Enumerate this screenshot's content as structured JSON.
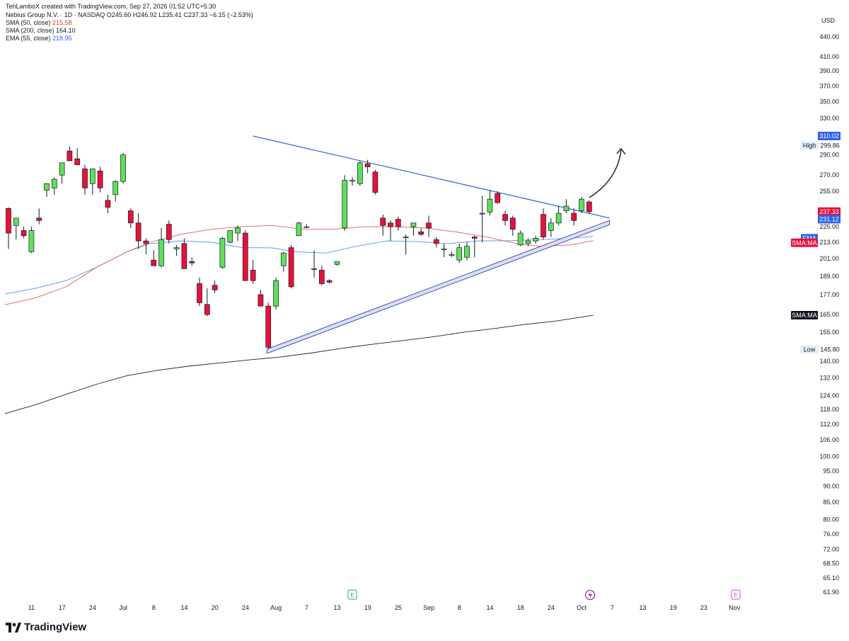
{
  "header": {
    "credit": "TehLamboX created with TradingView.com, Sep 27, 2026 01:52 UTC+5:30",
    "symbol_line": "Nebius Group N.V. · 1D · NASDAQ",
    "ohlc": "O245.60  H246.92  L235.41  C237.33  −6.15 (−2.53%)",
    "sma50_label": "SMA (50, close)",
    "sma50_value": "215.58",
    "sma200_label": "SMA (200, close)",
    "sma200_value": "164.10",
    "ema_label": "EMA (55, close)",
    "ema_value": "218.95"
  },
  "currency": "USD",
  "brand": "TradingView",
  "colors": {
    "up": "#5fe05a",
    "down": "#e8113a",
    "trendline": "#3b6fd8",
    "channel_fill": "#d9defa",
    "ema": "#5b8ff0",
    "sma50": "#e35b5b",
    "sma200": "#222222"
  },
  "chart_data": {
    "type": "candlestick",
    "scale": "log",
    "ylim": [
      61.9,
      440.0
    ],
    "y_ticks": [
      "440.00",
      "410.00",
      "390.00",
      "370.00",
      "350.00",
      "330.00",
      "290.00",
      "270.00",
      "255.00",
      "225.00",
      "213.00",
      "201.00",
      "189.00",
      "177.00",
      "165.00",
      "155.00",
      "140.00",
      "132.00",
      "124.00",
      "118.00",
      "112.00",
      "106.00",
      "100.00",
      "95.00",
      "90.00",
      "85.00",
      "80.00",
      "76.00",
      "72.00",
      "68.50",
      "65.10",
      "61.90"
    ],
    "x_ticks": [
      "11",
      "17",
      "24",
      "Jul",
      "8",
      "14",
      "20",
      "24",
      "Aug",
      "7",
      "13",
      "19",
      "25",
      "Sep",
      "8",
      "14",
      "18",
      "24",
      "Oct",
      "7",
      "13",
      "19",
      "23",
      "Nov"
    ],
    "price_labels": [
      {
        "text": "310.02",
        "value": 310.02,
        "kind": "blue"
      },
      {
        "text": "High",
        "value": 299.86,
        "kind": "tag"
      },
      {
        "text": "299.86",
        "value": 299.86,
        "kind": "plain"
      },
      {
        "text": "237.33",
        "value": 237.33,
        "kind": "red"
      },
      {
        "text": "231.12",
        "value": 231.12,
        "kind": "blue"
      },
      {
        "text": "EMA",
        "value": 216.0,
        "kind": "ema-tag"
      },
      {
        "text": "SMA:MA",
        "value": 212.6,
        "kind": "sma-tag"
      },
      {
        "text": "SMA:MA",
        "value": 164.6,
        "kind": "black-tag"
      },
      {
        "text": "Low",
        "value": 145.8,
        "kind": "tag"
      },
      {
        "text": "145.80",
        "value": 145.8,
        "kind": "plain"
      }
    ],
    "event_markers": [
      "E",
      "E"
    ],
    "candles": [
      {
        "o": 240,
        "h": 241,
        "l": 208,
        "c": 220
      },
      {
        "o": 226,
        "h": 232,
        "l": 215,
        "c": 232
      },
      {
        "o": 222,
        "h": 225,
        "l": 216,
        "c": 218
      },
      {
        "o": 206,
        "h": 225,
        "l": 205,
        "c": 222
      },
      {
        "o": 232,
        "h": 240,
        "l": 227,
        "c": 230
      },
      {
        "o": 256,
        "h": 262,
        "l": 250,
        "c": 262
      },
      {
        "o": 258,
        "h": 268,
        "l": 252,
        "c": 266
      },
      {
        "o": 270,
        "h": 282,
        "l": 262,
        "c": 282
      },
      {
        "o": 294,
        "h": 299,
        "l": 284,
        "c": 284
      },
      {
        "o": 286,
        "h": 297,
        "l": 280,
        "c": 280
      },
      {
        "o": 276,
        "h": 280,
        "l": 252,
        "c": 258
      },
      {
        "o": 262,
        "h": 276,
        "l": 252,
        "c": 276
      },
      {
        "o": 274,
        "h": 278,
        "l": 254,
        "c": 258
      },
      {
        "o": 247,
        "h": 252,
        "l": 236,
        "c": 241
      },
      {
        "o": 252,
        "h": 265,
        "l": 246,
        "c": 264
      },
      {
        "o": 264,
        "h": 292,
        "l": 262,
        "c": 290
      },
      {
        "o": 238,
        "h": 240,
        "l": 224,
        "c": 228
      },
      {
        "o": 228,
        "h": 236,
        "l": 208,
        "c": 214
      },
      {
        "o": 214,
        "h": 216,
        "l": 204,
        "c": 212
      },
      {
        "o": 200,
        "h": 207,
        "l": 196,
        "c": 196
      },
      {
        "o": 196,
        "h": 224,
        "l": 195,
        "c": 215
      },
      {
        "o": 227,
        "h": 230,
        "l": 212,
        "c": 215
      },
      {
        "o": 208,
        "h": 211,
        "l": 203,
        "c": 209
      },
      {
        "o": 212,
        "h": 216,
        "l": 194,
        "c": 194
      },
      {
        "o": 199,
        "h": 202,
        "l": 196,
        "c": 198
      },
      {
        "o": 184,
        "h": 188,
        "l": 170,
        "c": 172
      },
      {
        "o": 171,
        "h": 181,
        "l": 164,
        "c": 165
      },
      {
        "o": 183,
        "h": 186,
        "l": 178,
        "c": 180
      },
      {
        "o": 195,
        "h": 217,
        "l": 194,
        "c": 216
      },
      {
        "o": 213,
        "h": 222,
        "l": 212,
        "c": 222
      },
      {
        "o": 220,
        "h": 226,
        "l": 214,
        "c": 224
      },
      {
        "o": 220,
        "h": 222,
        "l": 186,
        "c": 186
      },
      {
        "o": 193,
        "h": 200,
        "l": 184,
        "c": 186
      },
      {
        "o": 177,
        "h": 180,
        "l": 170,
        "c": 170
      },
      {
        "o": 170,
        "h": 172,
        "l": 146,
        "c": 147
      },
      {
        "o": 170,
        "h": 188,
        "l": 168,
        "c": 186
      },
      {
        "o": 196,
        "h": 206,
        "l": 192,
        "c": 205
      },
      {
        "o": 209,
        "h": 211,
        "l": 181,
        "c": 182
      },
      {
        "o": 218,
        "h": 229,
        "l": 218,
        "c": 228
      },
      {
        "o": 225,
        "h": 227,
        "l": 224,
        "c": 225
      },
      {
        "o": 194,
        "h": 207,
        "l": 188,
        "c": 194
      },
      {
        "o": 193,
        "h": 196,
        "l": 183,
        "c": 184
      },
      {
        "o": 186,
        "h": 187,
        "l": 184,
        "c": 185
      },
      {
        "o": 197,
        "h": 199,
        "l": 196,
        "c": 199
      },
      {
        "o": 224,
        "h": 270,
        "l": 222,
        "c": 265
      },
      {
        "o": 265,
        "h": 268,
        "l": 260,
        "c": 265
      },
      {
        "o": 262,
        "h": 284,
        "l": 260,
        "c": 282
      },
      {
        "o": 281,
        "h": 285,
        "l": 272,
        "c": 278
      },
      {
        "o": 273,
        "h": 275,
        "l": 252,
        "c": 254
      },
      {
        "o": 232,
        "h": 235,
        "l": 218,
        "c": 226
      },
      {
        "o": 228,
        "h": 230,
        "l": 214,
        "c": 225
      },
      {
        "o": 231,
        "h": 233,
        "l": 222,
        "c": 225
      },
      {
        "o": 217,
        "h": 219,
        "l": 204,
        "c": 217
      },
      {
        "o": 225,
        "h": 228,
        "l": 218,
        "c": 228
      },
      {
        "o": 221,
        "h": 224,
        "l": 218,
        "c": 219
      },
      {
        "o": 228,
        "h": 234,
        "l": 217,
        "c": 224
      },
      {
        "o": 215,
        "h": 217,
        "l": 209,
        "c": 212
      },
      {
        "o": 208,
        "h": 212,
        "l": 202,
        "c": 208
      },
      {
        "o": 204,
        "h": 206,
        "l": 202,
        "c": 204
      },
      {
        "o": 200,
        "h": 212,
        "l": 198,
        "c": 209
      },
      {
        "o": 202,
        "h": 213,
        "l": 200,
        "c": 210
      },
      {
        "o": 217,
        "h": 218,
        "l": 202,
        "c": 216
      },
      {
        "o": 236,
        "h": 251,
        "l": 213,
        "c": 236
      },
      {
        "o": 237,
        "h": 256,
        "l": 234,
        "c": 248
      },
      {
        "o": 253,
        "h": 255,
        "l": 244,
        "c": 245
      },
      {
        "o": 235,
        "h": 238,
        "l": 226,
        "c": 230
      },
      {
        "o": 232,
        "h": 234,
        "l": 218,
        "c": 223
      },
      {
        "o": 211,
        "h": 222,
        "l": 210,
        "c": 220
      },
      {
        "o": 212,
        "h": 216,
        "l": 210,
        "c": 214
      },
      {
        "o": 214,
        "h": 218,
        "l": 212,
        "c": 216
      },
      {
        "o": 235,
        "h": 240,
        "l": 215,
        "c": 217
      },
      {
        "o": 222,
        "h": 232,
        "l": 217,
        "c": 228
      },
      {
        "o": 228,
        "h": 242,
        "l": 226,
        "c": 236
      },
      {
        "o": 238,
        "h": 248,
        "l": 236,
        "c": 242
      },
      {
        "o": 236,
        "h": 240,
        "l": 226,
        "c": 230
      },
      {
        "o": 238,
        "h": 250,
        "l": 236,
        "c": 248
      },
      {
        "o": 245.6,
        "h": 246.9,
        "l": 235.4,
        "c": 237.3
      }
    ],
    "series": [
      {
        "name": "EMA (55, close)",
        "values": [
          {
            "i": 0,
            "v": 177.5
          },
          {
            "i": 4,
            "v": 181
          },
          {
            "i": 8,
            "v": 186
          },
          {
            "i": 12,
            "v": 195
          },
          {
            "i": 16,
            "v": 206
          },
          {
            "i": 19,
            "v": 212
          },
          {
            "i": 23,
            "v": 214
          },
          {
            "i": 27,
            "v": 213
          },
          {
            "i": 31,
            "v": 209
          },
          {
            "i": 35,
            "v": 208.8
          },
          {
            "i": 38,
            "v": 206
          },
          {
            "i": 42,
            "v": 205
          },
          {
            "i": 46,
            "v": 210
          },
          {
            "i": 50,
            "v": 214
          },
          {
            "i": 54,
            "v": 213.5
          },
          {
            "i": 58,
            "v": 212
          },
          {
            "i": 62,
            "v": 214
          },
          {
            "i": 66,
            "v": 214.2
          },
          {
            "i": 70,
            "v": 215
          },
          {
            "i": 74,
            "v": 216
          },
          {
            "i": 77,
            "v": 217.5
          }
        ]
      },
      {
        "name": "SMA (50, close)",
        "values": [
          {
            "i": 0,
            "v": 170.8
          },
          {
            "i": 4,
            "v": 175
          },
          {
            "i": 8,
            "v": 182
          },
          {
            "i": 12,
            "v": 195
          },
          {
            "i": 16,
            "v": 206
          },
          {
            "i": 19,
            "v": 213
          },
          {
            "i": 23,
            "v": 219
          },
          {
            "i": 27,
            "v": 223
          },
          {
            "i": 31,
            "v": 225
          },
          {
            "i": 35,
            "v": 226
          },
          {
            "i": 39,
            "v": 223
          },
          {
            "i": 43,
            "v": 223
          },
          {
            "i": 47,
            "v": 225
          },
          {
            "i": 51,
            "v": 225
          },
          {
            "i": 55,
            "v": 224
          },
          {
            "i": 59,
            "v": 221
          },
          {
            "i": 63,
            "v": 217
          },
          {
            "i": 67,
            "v": 212
          },
          {
            "i": 70,
            "v": 210
          },
          {
            "i": 74,
            "v": 211
          },
          {
            "i": 77,
            "v": 214.2
          }
        ]
      },
      {
        "name": "SMA (200, close)",
        "values": [
          {
            "i": 0,
            "v": 116.3
          },
          {
            "i": 4,
            "v": 120
          },
          {
            "i": 8,
            "v": 124.5
          },
          {
            "i": 12,
            "v": 129
          },
          {
            "i": 16,
            "v": 133
          },
          {
            "i": 20,
            "v": 135.5
          },
          {
            "i": 24,
            "v": 137.5
          },
          {
            "i": 28,
            "v": 139
          },
          {
            "i": 32,
            "v": 140.6
          },
          {
            "i": 36,
            "v": 142
          },
          {
            "i": 40,
            "v": 144
          },
          {
            "i": 44,
            "v": 146.4
          },
          {
            "i": 48,
            "v": 148.5
          },
          {
            "i": 52,
            "v": 150.5
          },
          {
            "i": 56,
            "v": 152.5
          },
          {
            "i": 60,
            "v": 155
          },
          {
            "i": 64,
            "v": 157
          },
          {
            "i": 68,
            "v": 159.3
          },
          {
            "i": 72,
            "v": 161.2
          },
          {
            "i": 77,
            "v": 164.6
          }
        ]
      }
    ],
    "trendlines": [
      {
        "from": {
          "i": 34,
          "v": 310.0
        },
        "to": {
          "i": 77,
          "v": 232.0
        }
      }
    ],
    "channel": {
      "from": {
        "i": 34,
        "v": 146.0
      },
      "to": {
        "i": 78,
        "v": 230.0
      },
      "width": 6
    }
  }
}
